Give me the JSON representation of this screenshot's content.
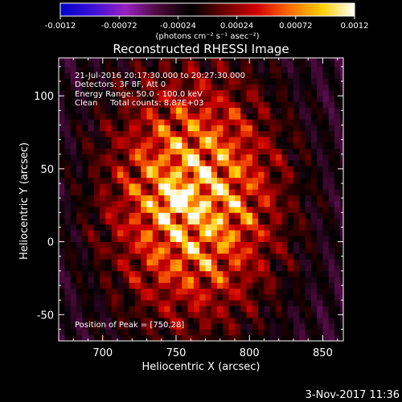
{
  "colorbar": {
    "ticks": [
      "-0.0012",
      "-0.00072",
      "-0.00024",
      "0.00024",
      "0.00072",
      "0.0012"
    ],
    "units_label": "(photons cm⁻² s⁻¹ asec⁻²)",
    "stops": [
      "#0000c8",
      "#3a10d8",
      "#9a20c0",
      "#4a0a3a",
      "#000000",
      "#6a0000",
      "#d00000",
      "#ff6a00",
      "#ffd000",
      "#ffffff"
    ]
  },
  "chart_data": {
    "type": "heatmap",
    "title": "Reconstructed RHESSI Image",
    "xlabel": "Heliocentric X (arcsec)",
    "ylabel": "Heliocentric Y (arcsec)",
    "xlim": [
      670,
      864
    ],
    "ylim": [
      -68,
      126
    ],
    "x_ticks": [
      700,
      750,
      800,
      850
    ],
    "y_ticks": [
      -50,
      0,
      50,
      100
    ],
    "value_range": [
      -0.0012,
      0.0012
    ],
    "peak": [
      750,
      28
    ],
    "info_lines": [
      "21-Jul-2016 20:17:30.000 to 20:27:30.000",
      "Detectors: 3F 8F, Att 0",
      "Energy Range: 50.0 - 100.0 keV",
      "Clean     Total counts: 8.87E+03"
    ],
    "peak_label": "Position of Peak = [750,28]"
  },
  "footer": {
    "timestamp": "3-Nov-2017 11:36"
  }
}
